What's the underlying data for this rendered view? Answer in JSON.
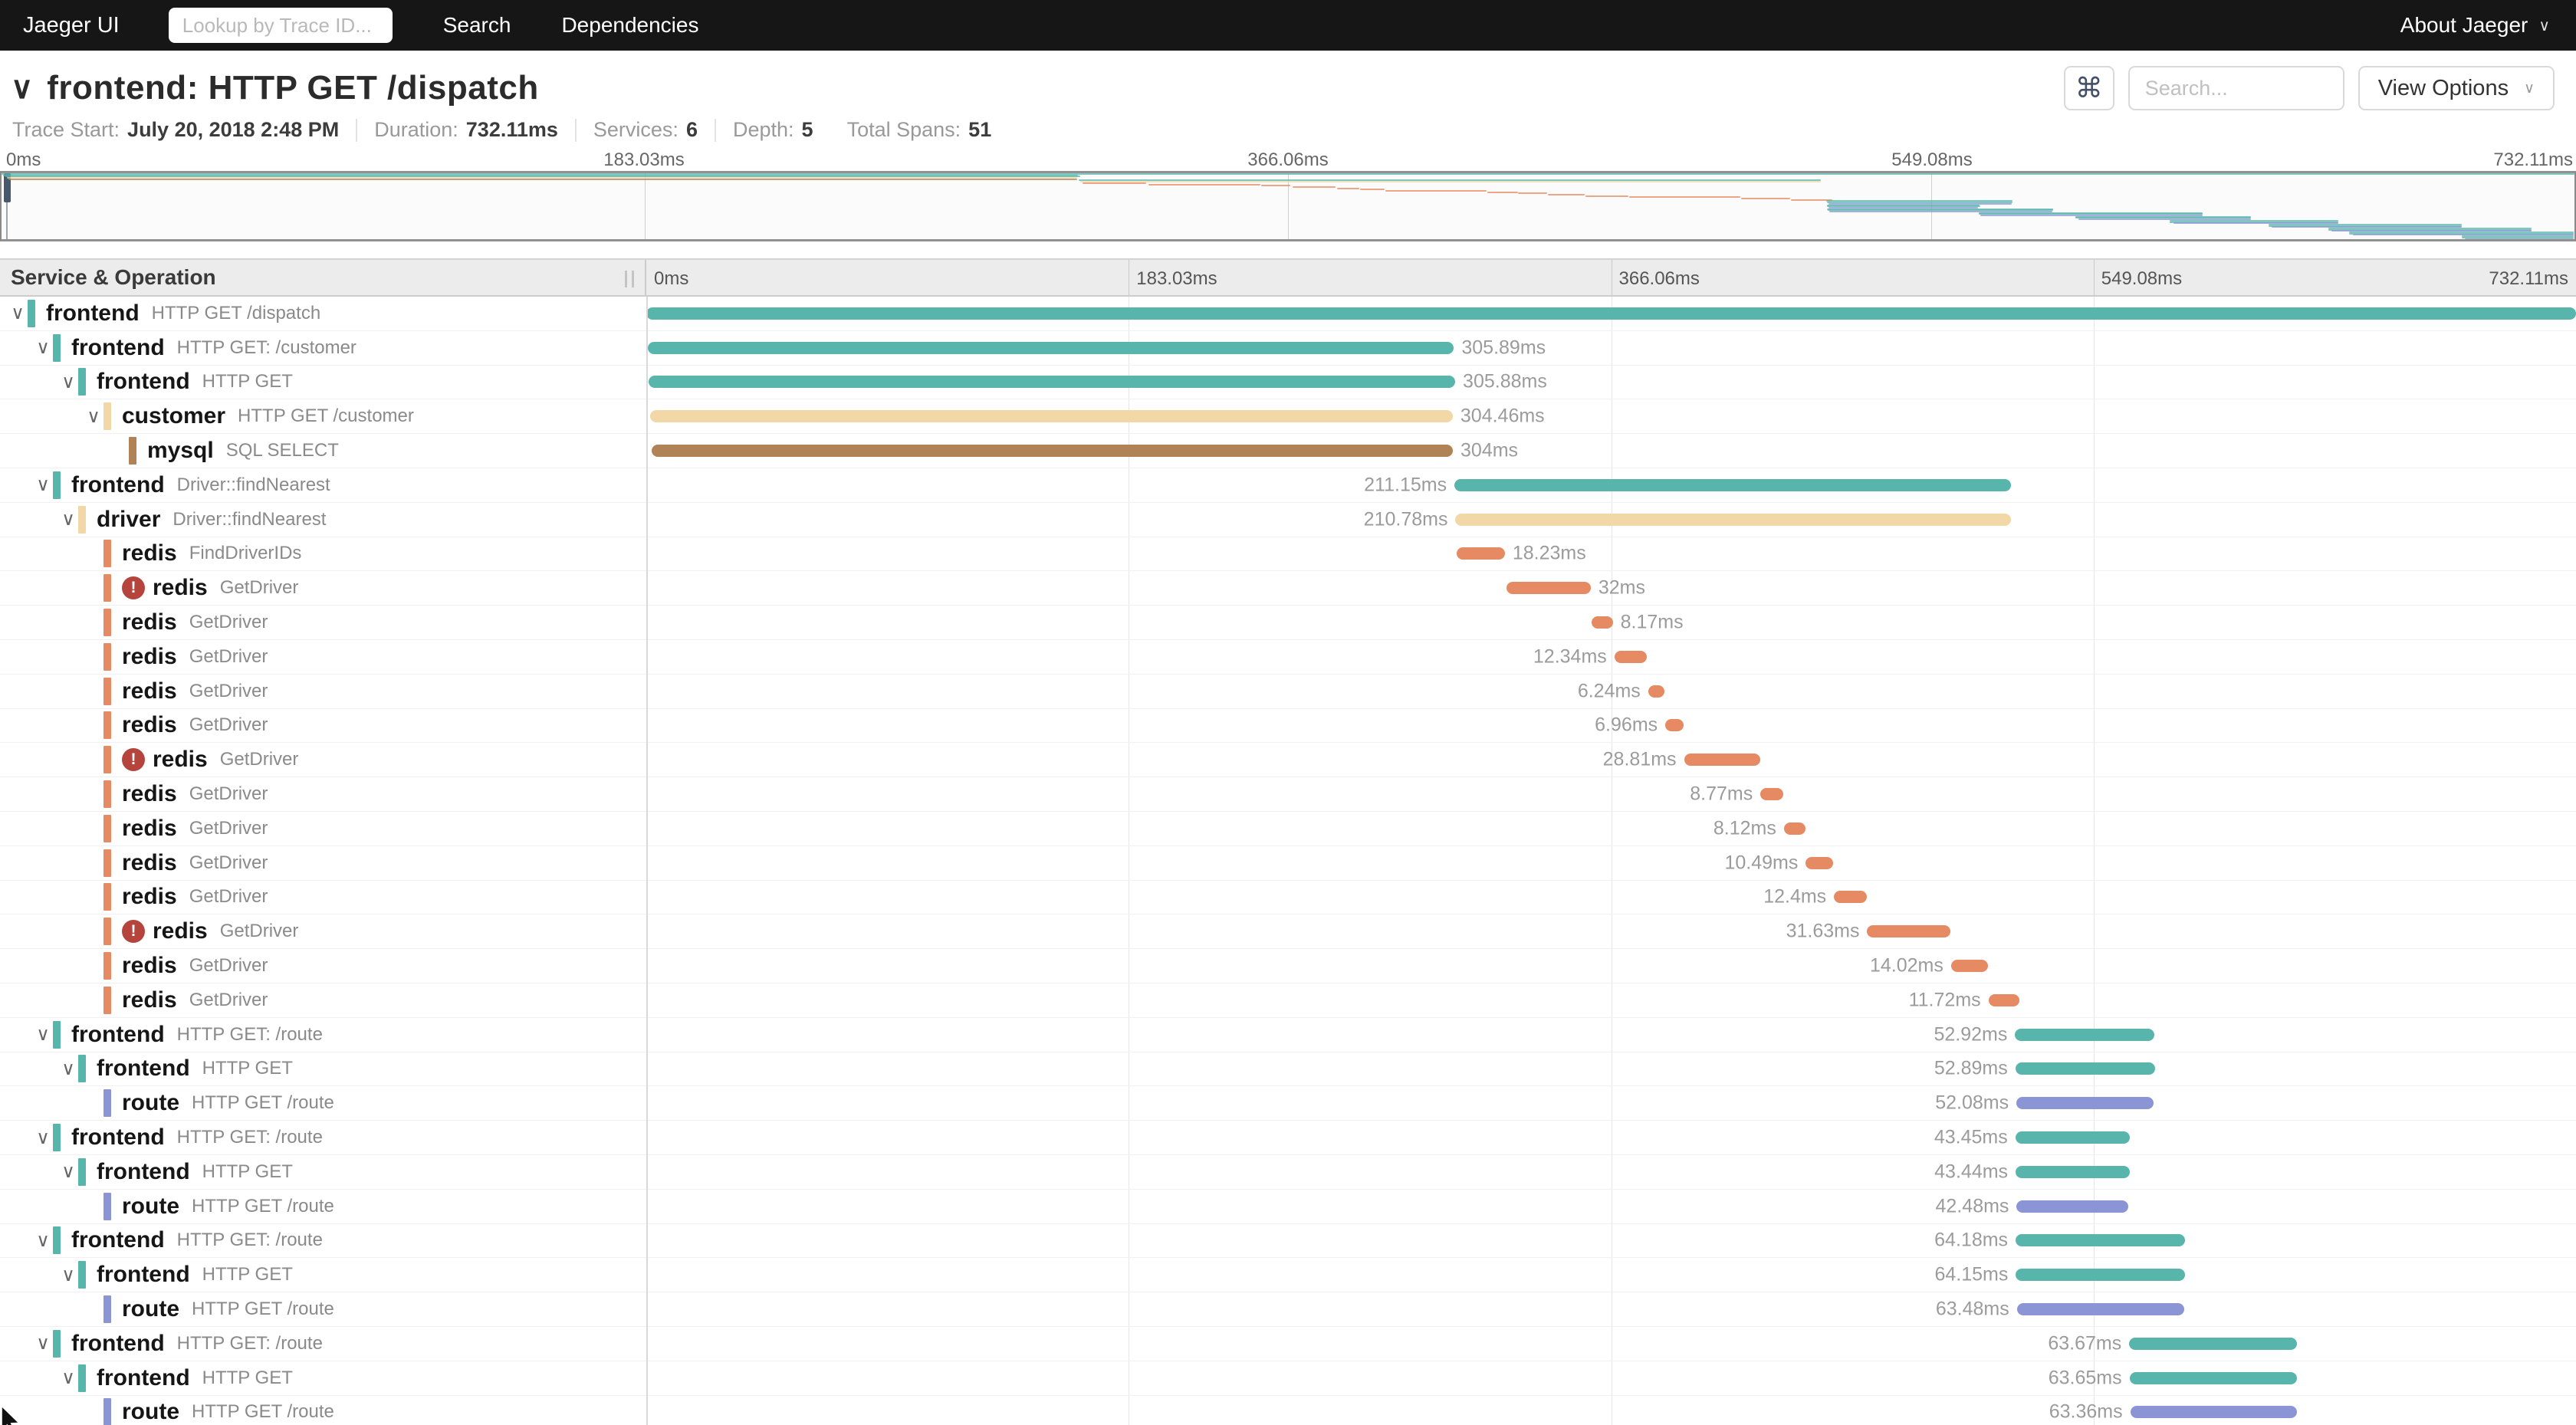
{
  "topnav": {
    "brand": "Jaeger UI",
    "trace_lookup_placeholder": "Lookup by Trace ID...",
    "items": [
      {
        "label": "Search"
      },
      {
        "label": "Dependencies"
      }
    ],
    "about": "About Jaeger",
    "chevron": "∨"
  },
  "header": {
    "collapse_chevron": "∨",
    "title": "frontend: HTTP GET /dispatch",
    "shortcut_icon": "⌘",
    "search_placeholder": "Search...",
    "view_options_label": "View Options",
    "chevron": "∨"
  },
  "trace_info": {
    "items": [
      {
        "label": "Trace Start:",
        "value": "July 20, 2018 2:48 PM",
        "sep": true
      },
      {
        "label": "Duration:",
        "value": "732.11ms",
        "sep": true
      },
      {
        "label": "Services:",
        "value": "6",
        "sep": true
      },
      {
        "label": "Depth:",
        "value": "5",
        "sep": false
      },
      {
        "label": "Total Spans:",
        "value": "51",
        "sep": false
      }
    ]
  },
  "timeline": {
    "column_header": "Service & Operation",
    "ticks": [
      "0ms",
      "183.03ms",
      "366.06ms",
      "549.08ms",
      "732.11ms"
    ],
    "duration_ms": 732.11
  },
  "colors": {
    "teal": "#57b5ac",
    "tan": "#f2d7a7",
    "brown": "#b08356",
    "orange": "#e58a62",
    "blue": "#8b95d6",
    "error": "#b5443c",
    "accent_dark": "#161616"
  },
  "spans": [
    {
      "service": "frontend",
      "operation": "HTTP GET /dispatch",
      "color": "teal",
      "depth": 0,
      "start": 0,
      "duration": 732.11,
      "label": "",
      "side": "none",
      "error": false,
      "children": true
    },
    {
      "service": "frontend",
      "operation": "HTTP GET: /customer",
      "color": "teal",
      "depth": 1,
      "start": 0.5,
      "duration": 305.89,
      "label": "305.89ms",
      "side": "right",
      "error": false,
      "children": true
    },
    {
      "service": "frontend",
      "operation": "HTTP GET",
      "color": "teal",
      "depth": 2,
      "start": 1.0,
      "duration": 305.88,
      "label": "305.88ms",
      "side": "right",
      "error": false,
      "children": true
    },
    {
      "service": "customer",
      "operation": "HTTP GET /customer",
      "color": "tan",
      "depth": 3,
      "start": 1.5,
      "duration": 304.46,
      "label": "304.46ms",
      "side": "right",
      "error": false,
      "children": true
    },
    {
      "service": "mysql",
      "operation": "SQL SELECT",
      "color": "brown",
      "depth": 4,
      "start": 2.0,
      "duration": 304.0,
      "label": "304ms",
      "side": "right",
      "error": false,
      "children": false
    },
    {
      "service": "frontend",
      "operation": "Driver::findNearest",
      "color": "teal",
      "depth": 1,
      "start": 306.6,
      "duration": 211.15,
      "label": "211.15ms",
      "side": "left",
      "error": false,
      "children": true
    },
    {
      "service": "driver",
      "operation": "Driver::findNearest",
      "color": "tan",
      "depth": 2,
      "start": 307.0,
      "duration": 210.78,
      "label": "210.78ms",
      "side": "left",
      "error": false,
      "children": true
    },
    {
      "service": "redis",
      "operation": "FindDriverIDs",
      "color": "orange",
      "depth": 3,
      "start": 307.5,
      "duration": 18.23,
      "label": "18.23ms",
      "side": "right",
      "error": false,
      "children": false
    },
    {
      "service": "redis",
      "operation": "GetDriver",
      "color": "orange",
      "depth": 3,
      "start": 326.3,
      "duration": 32.0,
      "label": "32ms",
      "side": "right",
      "error": true,
      "children": false
    },
    {
      "service": "redis",
      "operation": "GetDriver",
      "color": "orange",
      "depth": 3,
      "start": 358.5,
      "duration": 8.17,
      "label": "8.17ms",
      "side": "right",
      "error": false,
      "children": false
    },
    {
      "service": "redis",
      "operation": "GetDriver",
      "color": "orange",
      "depth": 3,
      "start": 367.3,
      "duration": 12.34,
      "label": "12.34ms",
      "side": "left",
      "error": false,
      "children": false
    },
    {
      "service": "redis",
      "operation": "GetDriver",
      "color": "orange",
      "depth": 3,
      "start": 380.1,
      "duration": 6.24,
      "label": "6.24ms",
      "side": "left",
      "error": false,
      "children": false
    },
    {
      "service": "redis",
      "operation": "GetDriver",
      "color": "orange",
      "depth": 3,
      "start": 386.6,
      "duration": 6.96,
      "label": "6.96ms",
      "side": "left",
      "error": false,
      "children": false
    },
    {
      "service": "redis",
      "operation": "GetDriver",
      "color": "orange",
      "depth": 3,
      "start": 393.7,
      "duration": 28.81,
      "label": "28.81ms",
      "side": "left",
      "error": true,
      "children": false
    },
    {
      "service": "redis",
      "operation": "GetDriver",
      "color": "orange",
      "depth": 3,
      "start": 422.7,
      "duration": 8.77,
      "label": "8.77ms",
      "side": "left",
      "error": false,
      "children": false
    },
    {
      "service": "redis",
      "operation": "GetDriver",
      "color": "orange",
      "depth": 3,
      "start": 431.6,
      "duration": 8.12,
      "label": "8.12ms",
      "side": "left",
      "error": false,
      "children": false
    },
    {
      "service": "redis",
      "operation": "GetDriver",
      "color": "orange",
      "depth": 3,
      "start": 439.9,
      "duration": 10.49,
      "label": "10.49ms",
      "side": "left",
      "error": false,
      "children": false
    },
    {
      "service": "redis",
      "operation": "GetDriver",
      "color": "orange",
      "depth": 3,
      "start": 450.6,
      "duration": 12.4,
      "label": "12.4ms",
      "side": "left",
      "error": false,
      "children": false
    },
    {
      "service": "redis",
      "operation": "GetDriver",
      "color": "orange",
      "depth": 3,
      "start": 463.2,
      "duration": 31.63,
      "label": "31.63ms",
      "side": "left",
      "error": true,
      "children": false
    },
    {
      "service": "redis",
      "operation": "GetDriver",
      "color": "orange",
      "depth": 3,
      "start": 495.0,
      "duration": 14.02,
      "label": "14.02ms",
      "side": "left",
      "error": false,
      "children": false
    },
    {
      "service": "redis",
      "operation": "GetDriver",
      "color": "orange",
      "depth": 3,
      "start": 509.2,
      "duration": 11.72,
      "label": "11.72ms",
      "side": "left",
      "error": false,
      "children": false
    },
    {
      "service": "frontend",
      "operation": "HTTP GET: /route",
      "color": "teal",
      "depth": 1,
      "start": 519.3,
      "duration": 52.92,
      "label": "52.92ms",
      "side": "left",
      "error": false,
      "children": true
    },
    {
      "service": "frontend",
      "operation": "HTTP GET",
      "color": "teal",
      "depth": 2,
      "start": 519.4,
      "duration": 52.89,
      "label": "52.89ms",
      "side": "left",
      "error": false,
      "children": true
    },
    {
      "service": "route",
      "operation": "HTTP GET /route",
      "color": "blue",
      "depth": 3,
      "start": 519.8,
      "duration": 52.08,
      "label": "52.08ms",
      "side": "left",
      "error": false,
      "children": false
    },
    {
      "service": "frontend",
      "operation": "HTTP GET: /route",
      "color": "teal",
      "depth": 1,
      "start": 519.4,
      "duration": 43.45,
      "label": "43.45ms",
      "side": "left",
      "error": false,
      "children": true
    },
    {
      "service": "frontend",
      "operation": "HTTP GET",
      "color": "teal",
      "depth": 2,
      "start": 519.5,
      "duration": 43.44,
      "label": "43.44ms",
      "side": "left",
      "error": false,
      "children": true
    },
    {
      "service": "route",
      "operation": "HTTP GET /route",
      "color": "blue",
      "depth": 3,
      "start": 519.9,
      "duration": 42.48,
      "label": "42.48ms",
      "side": "left",
      "error": false,
      "children": false
    },
    {
      "service": "frontend",
      "operation": "HTTP GET: /route",
      "color": "teal",
      "depth": 1,
      "start": 519.5,
      "duration": 64.18,
      "label": "64.18ms",
      "side": "left",
      "error": false,
      "children": true
    },
    {
      "service": "frontend",
      "operation": "HTTP GET",
      "color": "teal",
      "depth": 2,
      "start": 519.6,
      "duration": 64.15,
      "label": "64.15ms",
      "side": "left",
      "error": false,
      "children": true
    },
    {
      "service": "route",
      "operation": "HTTP GET /route",
      "color": "blue",
      "depth": 3,
      "start": 520.0,
      "duration": 63.48,
      "label": "63.48ms",
      "side": "left",
      "error": false,
      "children": false
    },
    {
      "service": "frontend",
      "operation": "HTTP GET: /route",
      "color": "teal",
      "depth": 1,
      "start": 562.6,
      "duration": 63.67,
      "label": "63.67ms",
      "side": "left",
      "error": false,
      "children": true
    },
    {
      "service": "frontend",
      "operation": "HTTP GET",
      "color": "teal",
      "depth": 2,
      "start": 562.7,
      "duration": 63.65,
      "label": "63.65ms",
      "side": "left",
      "error": false,
      "children": true
    },
    {
      "service": "route",
      "operation": "HTTP GET /route",
      "color": "blue",
      "depth": 3,
      "start": 563.0,
      "duration": 63.36,
      "label": "63.36ms",
      "side": "left",
      "error": false,
      "children": false
    }
  ],
  "minimap_extra": [
    {
      "start": 590,
      "duration": 50,
      "color": "teal"
    },
    {
      "start": 590,
      "duration": 50,
      "color": "teal"
    },
    {
      "start": 591,
      "duration": 49,
      "color": "blue"
    },
    {
      "start": 617,
      "duration": 48,
      "color": "teal"
    },
    {
      "start": 617,
      "duration": 48,
      "color": "teal"
    },
    {
      "start": 618,
      "duration": 47,
      "color": "blue"
    },
    {
      "start": 645,
      "duration": 55,
      "color": "teal"
    },
    {
      "start": 645,
      "duration": 55,
      "color": "teal"
    },
    {
      "start": 646,
      "duration": 54,
      "color": "blue"
    },
    {
      "start": 662,
      "duration": 58,
      "color": "teal"
    },
    {
      "start": 662,
      "duration": 58,
      "color": "teal"
    },
    {
      "start": 663,
      "duration": 57,
      "color": "blue"
    },
    {
      "start": 668,
      "duration": 64,
      "color": "teal"
    },
    {
      "start": 668,
      "duration": 64,
      "color": "teal"
    },
    {
      "start": 669,
      "duration": 63,
      "color": "blue"
    },
    {
      "start": 700,
      "duration": 32,
      "color": "teal"
    },
    {
      "start": 700,
      "duration": 32,
      "color": "teal"
    },
    {
      "start": 701,
      "duration": 31,
      "color": "blue"
    }
  ]
}
